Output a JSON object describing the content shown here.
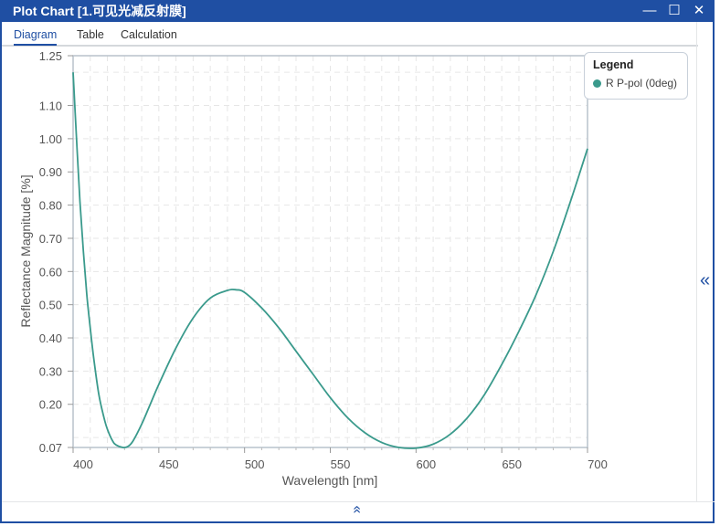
{
  "window": {
    "title": "Plot Chart [1.可见光减反射膜]",
    "minimize_icon": "minimize-icon",
    "maximize_icon": "maximize-icon",
    "close_icon": "close-icon"
  },
  "tabs": [
    {
      "label": "Diagram",
      "active": true
    },
    {
      "label": "Table"
    },
    {
      "label": "Calculation"
    }
  ],
  "legend": {
    "title": "Legend",
    "items": [
      {
        "label": "R P-pol (0deg)",
        "color": "#3a9a8c"
      }
    ]
  },
  "chart_data": {
    "type": "line",
    "title": "",
    "xlabel": "Wavelength [nm]",
    "ylabel": "Reflectance Magnitude [%]",
    "xlim": [
      400,
      700
    ],
    "ylim": [
      0.07,
      1.25
    ],
    "xticks": [
      400,
      450,
      500,
      550,
      600,
      650,
      700
    ],
    "xtick_labels": [
      "400",
      "450",
      "500",
      "550",
      "600",
      "650",
      "700"
    ],
    "yticks": [
      1.25,
      1.1,
      1.0,
      0.9,
      0.8,
      0.7,
      0.6,
      0.5,
      0.4,
      0.3,
      0.2,
      0.07
    ],
    "ytick_labels": [
      "1.25",
      "1.10",
      "1.00",
      "0.90",
      "0.80",
      "0.70",
      "0.60",
      "0.50",
      "0.40",
      "0.30",
      "0.20",
      "0.07"
    ],
    "grid": true,
    "legend_position": "top-right",
    "series": [
      {
        "name": "R P-pol (0deg)",
        "color": "#3a9a8c",
        "x": [
          400,
          402,
          404,
          406,
          408,
          410,
          412,
          415,
          418,
          420,
          423,
          425,
          429,
          432,
          435,
          440,
          445,
          450,
          460,
          470,
          480,
          490,
          495,
          500,
          510,
          520,
          530,
          540,
          550,
          560,
          570,
          580,
          590,
          600,
          610,
          620,
          630,
          640,
          650,
          660,
          670,
          680,
          690,
          700
        ],
        "y": [
          1.2,
          1.0,
          0.81,
          0.66,
          0.53,
          0.43,
          0.34,
          0.23,
          0.16,
          0.125,
          0.09,
          0.078,
          0.07,
          0.073,
          0.09,
          0.14,
          0.2,
          0.26,
          0.37,
          0.46,
          0.52,
          0.543,
          0.545,
          0.537,
          0.49,
          0.43,
          0.36,
          0.29,
          0.22,
          0.16,
          0.115,
          0.085,
          0.07,
          0.068,
          0.08,
          0.11,
          0.16,
          0.23,
          0.32,
          0.42,
          0.53,
          0.66,
          0.81,
          0.97
        ]
      }
    ]
  }
}
